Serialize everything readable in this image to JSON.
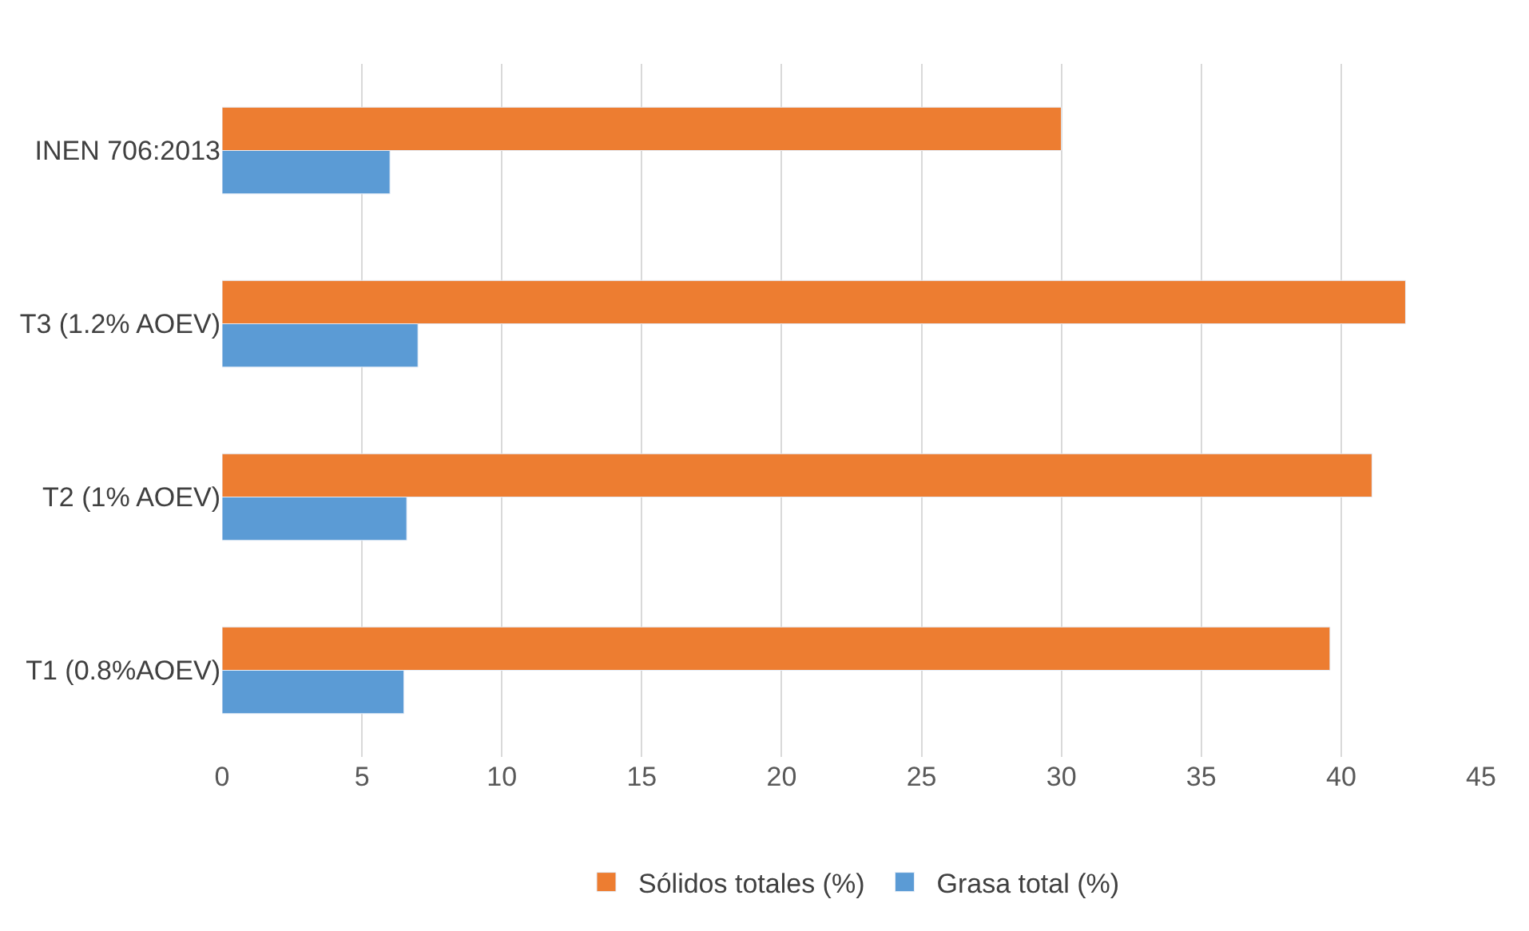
{
  "chart_data": {
    "type": "bar",
    "orientation": "horizontal",
    "categories": [
      "INEN 706:2013",
      "T3 (1.2% AOEV)",
      "T2 (1% AOEV)",
      "T1 (0.8%AOEV)"
    ],
    "series": [
      {
        "name": "Sólidos totales (%)",
        "color": "#ed7d31",
        "values": [
          30.0,
          42.3,
          41.1,
          39.6
        ]
      },
      {
        "name": "Grasa total (%)",
        "color": "#5b9bd5",
        "values": [
          6.0,
          7.0,
          6.6,
          6.5
        ]
      }
    ],
    "xlim": [
      0,
      45
    ],
    "xticks": [
      0,
      5,
      10,
      15,
      20,
      25,
      30,
      35,
      40,
      45
    ],
    "grid": "x",
    "legend": "bottom"
  }
}
